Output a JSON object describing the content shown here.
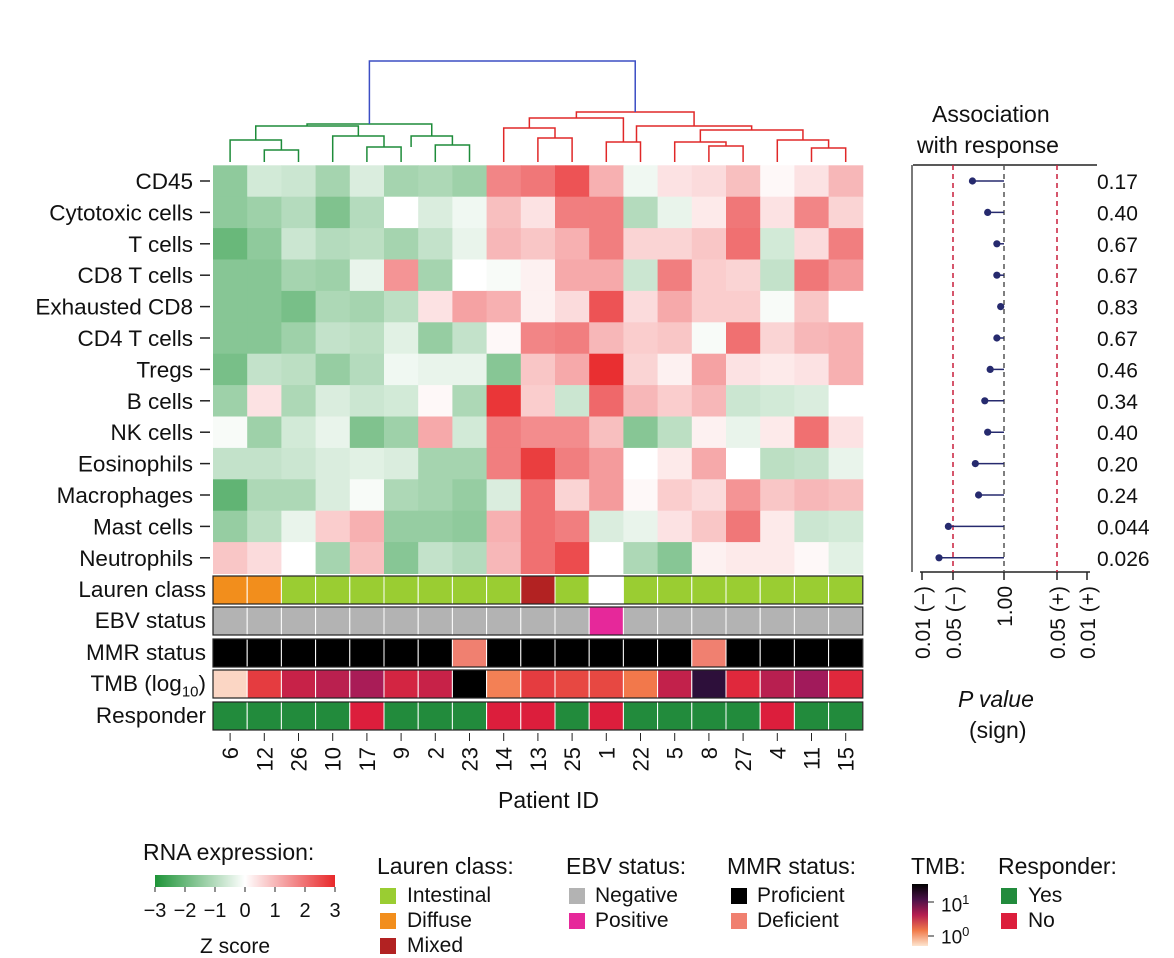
{
  "chart_data": {
    "type": "heatmap",
    "rows": [
      "CD45",
      "Cytotoxic cells",
      "T cells",
      "CD8 T cells",
      "Exhausted CD8",
      "CD4 T cells",
      "Tregs",
      "B cells",
      "NK cells",
      "Eosinophils",
      "Macrophages",
      "Mast cells",
      "Neutrophils"
    ],
    "patients": [
      "6",
      "12",
      "26",
      "10",
      "17",
      "9",
      "2",
      "23",
      "14",
      "13",
      "25",
      "1",
      "22",
      "5",
      "8",
      "27",
      "4",
      "11",
      "15"
    ],
    "xlabel": "Patient ID",
    "zscores": [
      [
        -1.5,
        -0.6,
        -0.7,
        -1.2,
        -0.5,
        -1.2,
        -1.1,
        -1.3,
        1.7,
        1.9,
        2.4,
        1.1,
        -0.2,
        0.4,
        0.5,
        0.9,
        0.1,
        0.4,
        1.0
      ],
      [
        -1.5,
        -1.3,
        -1.0,
        -1.7,
        -1.0,
        0.0,
        -0.5,
        -0.2,
        0.9,
        0.4,
        1.8,
        1.8,
        -1.0,
        -0.3,
        0.3,
        1.9,
        0.4,
        1.7,
        0.6
      ],
      [
        -2.0,
        -1.5,
        -0.7,
        -1.0,
        -0.9,
        -1.2,
        -0.8,
        -0.3,
        1.0,
        0.8,
        1.1,
        1.8,
        0.6,
        0.6,
        0.8,
        2.0,
        -0.6,
        0.5,
        1.8
      ],
      [
        -1.6,
        -1.6,
        -1.2,
        -1.3,
        -0.3,
        1.5,
        -1.2,
        0.0,
        -0.1,
        0.2,
        1.2,
        1.2,
        -0.7,
        1.8,
        0.7,
        0.6,
        -0.8,
        1.9,
        1.4
      ],
      [
        -1.6,
        -1.6,
        -1.8,
        -1.1,
        -1.2,
        -0.9,
        0.4,
        1.3,
        1.1,
        0.2,
        0.5,
        2.4,
        0.5,
        1.2,
        0.7,
        0.7,
        -0.1,
        0.8,
        0.0
      ],
      [
        -1.6,
        -1.6,
        -1.3,
        -0.8,
        -0.9,
        -0.4,
        -1.4,
        -0.8,
        0.1,
        1.7,
        1.8,
        1.0,
        0.7,
        0.8,
        -0.1,
        2.0,
        0.6,
        1.0,
        1.1
      ],
      [
        -1.8,
        -0.8,
        -0.9,
        -1.4,
        -1.0,
        -0.2,
        -0.3,
        -0.3,
        -1.6,
        0.8,
        1.2,
        2.9,
        0.6,
        0.2,
        1.3,
        0.4,
        0.3,
        0.4,
        1.1
      ],
      [
        -1.3,
        0.4,
        -1.1,
        -0.5,
        -0.7,
        -0.6,
        0.1,
        -1.1,
        2.8,
        0.7,
        -0.7,
        2.1,
        1.0,
        0.7,
        1.0,
        -0.7,
        -0.6,
        -0.5,
        0.0
      ],
      [
        -0.1,
        -1.3,
        -0.6,
        -0.3,
        -1.7,
        -1.3,
        1.2,
        -0.6,
        1.8,
        1.6,
        1.6,
        0.9,
        -1.6,
        -0.9,
        0.2,
        -0.3,
        0.3,
        2.0,
        0.4
      ],
      [
        -0.8,
        -0.8,
        -0.7,
        -0.5,
        -0.4,
        -0.5,
        -1.2,
        -1.2,
        1.8,
        2.7,
        1.8,
        1.4,
        0.0,
        0.3,
        1.2,
        0.0,
        -0.9,
        -0.8,
        -0.3
      ],
      [
        -2.1,
        -1.1,
        -1.1,
        -0.5,
        -0.1,
        -1.1,
        -1.2,
        -1.4,
        -0.5,
        2.0,
        0.6,
        1.4,
        0.1,
        0.7,
        0.5,
        1.5,
        0.8,
        1.0,
        0.9
      ],
      [
        -1.4,
        -0.9,
        -0.3,
        0.7,
        1.1,
        -1.4,
        -1.4,
        -1.5,
        1.1,
        2.0,
        1.8,
        -0.5,
        -0.3,
        0.4,
        0.8,
        1.9,
        0.3,
        -0.7,
        -0.6
      ],
      [
        0.8,
        0.5,
        0.0,
        -1.2,
        0.9,
        -1.6,
        -0.8,
        -1.0,
        1.0,
        2.0,
        2.5,
        0.0,
        -1.1,
        -1.6,
        0.2,
        0.3,
        0.3,
        0.1,
        -0.4
      ]
    ],
    "annotation_labels": {
      "lauren": "Lauren class",
      "ebv": "EBV status",
      "mmr": "MMR status",
      "tmb_pre": "TMB (log",
      "tmb_sub": "10",
      "tmb_post": ")",
      "responder": "Responder"
    },
    "lauren": [
      "Diffuse",
      "Diffuse",
      "Intestinal",
      "Intestinal",
      "Intestinal",
      "Intestinal",
      "Intestinal",
      "Intestinal",
      "Intestinal",
      "Mixed",
      "Intestinal",
      "Unknown",
      "Intestinal",
      "Intestinal",
      "Intestinal",
      "Intestinal",
      "Intestinal",
      "Intestinal",
      "Intestinal"
    ],
    "ebv": [
      "Negative",
      "Negative",
      "Negative",
      "Negative",
      "Negative",
      "Negative",
      "Negative",
      "Negative",
      "Negative",
      "Negative",
      "Negative",
      "Positive",
      "Negative",
      "Negative",
      "Negative",
      "Negative",
      "Negative",
      "Negative",
      "Negative"
    ],
    "mmr": [
      "Proficient",
      "Proficient",
      "Proficient",
      "Proficient",
      "Proficient",
      "Proficient",
      "Proficient",
      "Deficient",
      "Proficient",
      "Proficient",
      "Proficient",
      "Proficient",
      "Proficient",
      "Proficient",
      "Deficient",
      "Proficient",
      "Proficient",
      "Proficient",
      "Proficient"
    ],
    "tmb": [
      0.05,
      0.45,
      0.6,
      0.65,
      0.72,
      0.55,
      0.6,
      1.5,
      0.28,
      0.45,
      0.42,
      0.42,
      0.3,
      0.62,
      1.2,
      0.5,
      0.66,
      0.75,
      0.5
    ],
    "responder": [
      "Yes",
      "Yes",
      "Yes",
      "Yes",
      "No",
      "Yes",
      "Yes",
      "Yes",
      "No",
      "No",
      "Yes",
      "No",
      "Yes",
      "Yes",
      "Yes",
      "Yes",
      "No",
      "Yes",
      "Yes"
    ],
    "association": {
      "title_line1": "Association",
      "title_line2": "with response",
      "p_values": [
        "0.17",
        "0.40",
        "0.67",
        "0.67",
        "0.83",
        "0.67",
        "0.46",
        "0.34",
        "0.40",
        "0.20",
        "0.24",
        "0.044",
        "0.026"
      ],
      "xticks": [
        "0.01 (−)",
        "0.05 (−)",
        "1.00",
        "0.05 (+)",
        "0.01 (+)"
      ],
      "xlabel_line1": "P value",
      "xlabel_line2": "(sign)"
    }
  },
  "legend": {
    "rna": {
      "title": "RNA expression:",
      "ticks": [
        "−3",
        "−2",
        "−1",
        "0",
        "1",
        "2",
        "3"
      ],
      "axis": "Z score"
    },
    "lauren": {
      "title": "Lauren class:",
      "items": [
        {
          "label": "Intestinal",
          "color": "#9acd32"
        },
        {
          "label": "Diffuse",
          "color": "#f28e1c"
        },
        {
          "label": "Mixed",
          "color": "#b22222"
        }
      ]
    },
    "ebv": {
      "title": "EBV status:",
      "items": [
        {
          "label": "Negative",
          "color": "#b3b3b3"
        },
        {
          "label": "Positive",
          "color": "#e6289a"
        }
      ]
    },
    "mmr": {
      "title": "MMR status:",
      "items": [
        {
          "label": "Proficient",
          "color": "#000000"
        },
        {
          "label": "Deficient",
          "color": "#f08070"
        }
      ]
    },
    "tmb": {
      "title": "TMB:",
      "tick_hi_base": "10",
      "tick_hi_exp": "1",
      "tick_lo_base": "10",
      "tick_lo_exp": "0"
    },
    "responder": {
      "title": "Responder:",
      "items": [
        {
          "label": "Yes",
          "color": "#228b3c"
        },
        {
          "label": "No",
          "color": "#dc1e3c"
        }
      ]
    }
  },
  "colors": {
    "low": "#1e9438",
    "mid": "#ffffff",
    "high": "#e8282a",
    "tree_left": "#1e8c3a",
    "tree_right": "#e02828",
    "tree_root": "#3c4ec4",
    "dot": "#262a6e",
    "dashed_red": "#c81e3c"
  }
}
